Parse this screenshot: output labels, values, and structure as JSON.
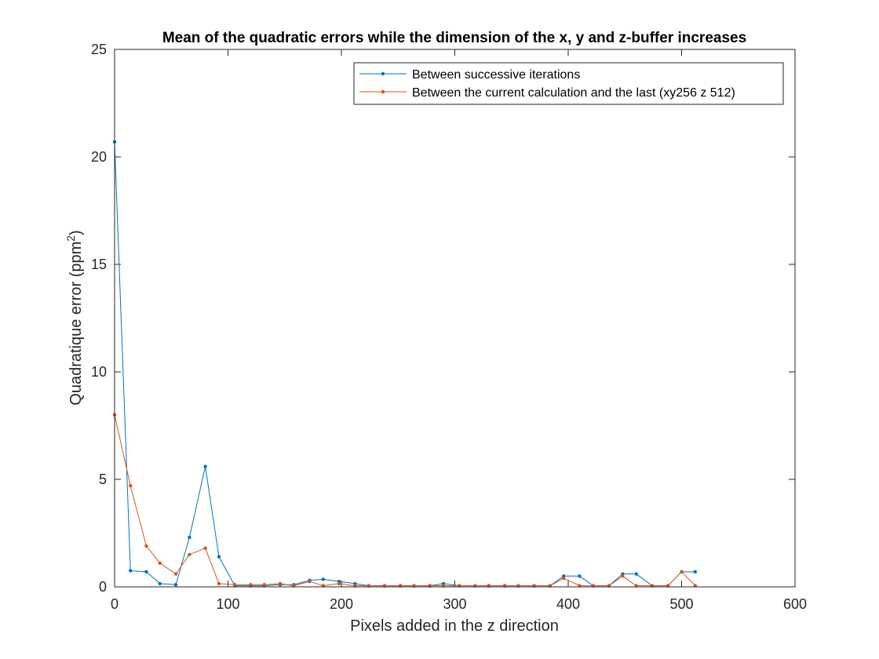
{
  "chart_data": {
    "type": "line",
    "title": "Mean of the quadratic errors while the dimension of the x, y and z-buffer increases",
    "xlabel": "Pixels added in the z direction",
    "ylabel_prefix": "Quadratique error (ppm",
    "ylabel_sup": "2",
    "ylabel_suffix": ")",
    "xlim": [
      0,
      600
    ],
    "ylim": [
      0,
      25
    ],
    "xticks": [
      "0",
      "100",
      "200",
      "300",
      "400",
      "500",
      "600"
    ],
    "yticks": [
      "0",
      "5",
      "10",
      "15",
      "20",
      "25"
    ],
    "grid": false,
    "legend_position": "top-right",
    "series": [
      {
        "name": "Between successive iterations",
        "color": "#0072BD",
        "x": [
          0,
          14,
          28,
          40,
          54,
          66,
          80,
          92,
          106,
          120,
          132,
          146,
          158,
          172,
          184,
          198,
          212,
          224,
          238,
          252,
          264,
          278,
          290,
          304,
          318,
          330,
          344,
          356,
          370,
          384,
          396,
          410,
          422,
          436,
          448,
          460,
          474,
          488,
          500,
          512
        ],
        "y": [
          20.7,
          0.75,
          0.7,
          0.15,
          0.1,
          2.3,
          5.6,
          1.4,
          0.05,
          0.05,
          0.05,
          0.1,
          0.1,
          0.3,
          0.35,
          0.25,
          0.15,
          0.05,
          0.05,
          0.05,
          0.05,
          0.05,
          0.15,
          0.05,
          0.05,
          0.05,
          0.05,
          0.05,
          0.05,
          0.05,
          0.5,
          0.5,
          0.05,
          0.05,
          0.6,
          0.6,
          0.05,
          0.05,
          0.7,
          0.7
        ]
      },
      {
        "name": "Between the current calculation and the last (xy256 z 512)",
        "color": "#D95319",
        "x": [
          0,
          14,
          28,
          40,
          54,
          66,
          80,
          92,
          106,
          120,
          132,
          146,
          158,
          172,
          184,
          198,
          212,
          224,
          238,
          252,
          264,
          278,
          290,
          304,
          318,
          330,
          344,
          356,
          370,
          384,
          396,
          410,
          422,
          436,
          448,
          460,
          474,
          488,
          500,
          512
        ],
        "y": [
          8.0,
          4.7,
          1.9,
          1.1,
          0.6,
          1.5,
          1.8,
          0.15,
          0.1,
          0.1,
          0.1,
          0.15,
          0.05,
          0.25,
          0.05,
          0.15,
          0.05,
          0.05,
          0.05,
          0.05,
          0.05,
          0.05,
          0.05,
          0.05,
          0.05,
          0.05,
          0.05,
          0.05,
          0.05,
          0.05,
          0.4,
          0.05,
          0.05,
          0.05,
          0.5,
          0.05,
          0.05,
          0.05,
          0.7,
          0.05
        ]
      }
    ]
  }
}
